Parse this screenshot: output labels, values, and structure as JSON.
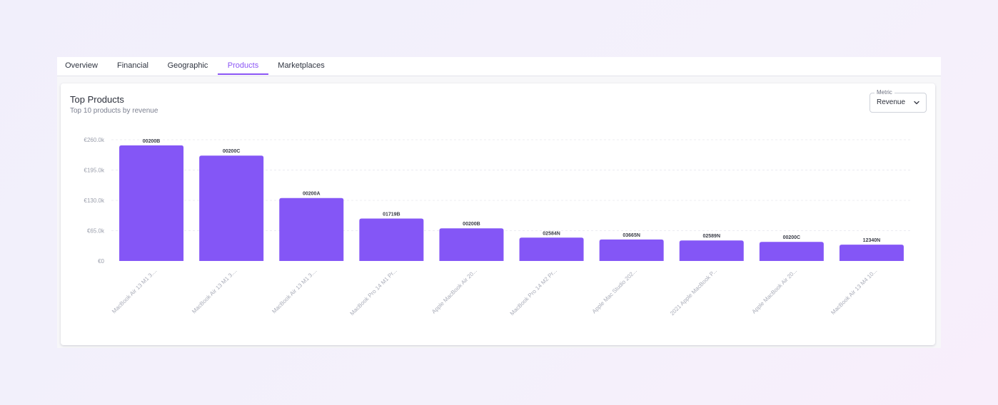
{
  "tabs": [
    "Overview",
    "Financial",
    "Geographic",
    "Products",
    "Marketplaces"
  ],
  "active_tab": "Products",
  "card": {
    "title": "Top Products",
    "subtitle": "Top 10 products by revenue"
  },
  "metric_select": {
    "label": "Metric",
    "value": "Revenue"
  },
  "colors": {
    "accent": "#8b55f5",
    "bar": "#8456f6"
  },
  "chart_data": {
    "type": "bar",
    "title": "Top Products",
    "subtitle": "Top 10 products by revenue",
    "xlabel": "",
    "ylabel": "",
    "ylim": [
      0,
      260000
    ],
    "yticks": [
      0,
      65000,
      130000,
      195000,
      260000
    ],
    "ytick_labels": [
      "€0",
      "€65.0k",
      "€130.0k",
      "€195.0k",
      "€260.0k"
    ],
    "grid": true,
    "categories": [
      "MacBook Air 13 M1 3....",
      "MacBook Air 13 M1 3....",
      "MacBook Air 13 M1 3....",
      "MacBook Pro 14 M1 Pr...",
      "Apple MacBook Air 20...",
      "MacBook Pro 14 M2 Pr...",
      "Apple Mac Studio 202...",
      "2021 Apple MacBook P...",
      "Apple MacBook Air 20...",
      "MacBook Air 13 M4 10..."
    ],
    "data_labels": [
      "00200B",
      "00200C",
      "00200A",
      "01719B",
      "00200B",
      "02584N",
      "03665N",
      "02589N",
      "00200C",
      "12340N"
    ],
    "values": [
      248000,
      226000,
      135000,
      91000,
      70000,
      50000,
      46000,
      44000,
      41000,
      35000
    ]
  }
}
